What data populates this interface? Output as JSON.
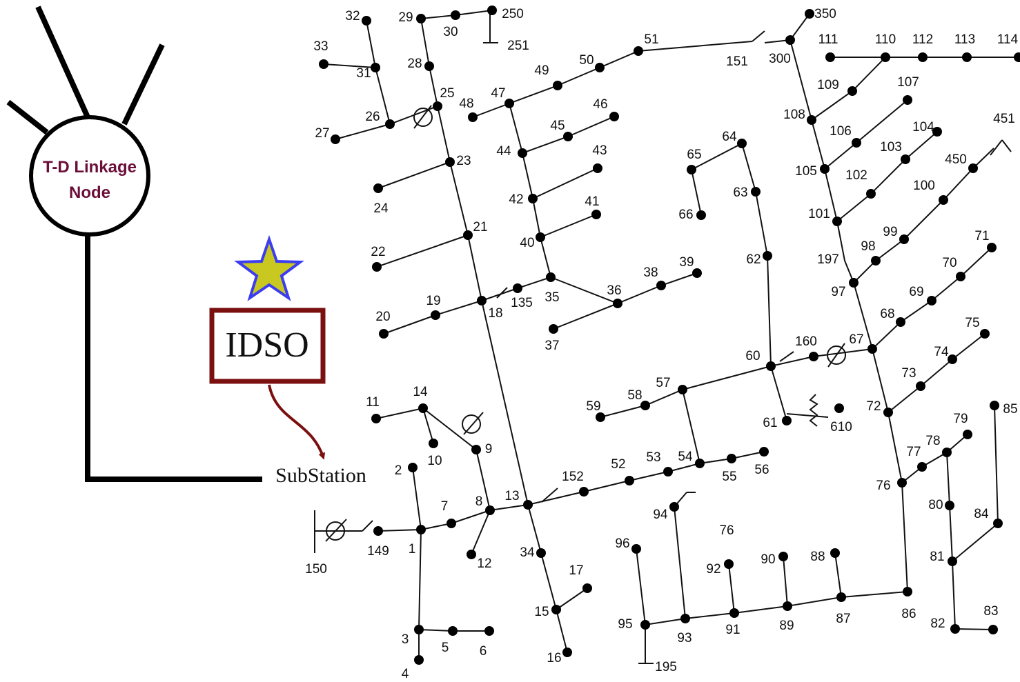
{
  "linkage_node": {
    "label_lines": [
      "T-D Linkage",
      "Node"
    ]
  },
  "idso": {
    "label": "IDSO"
  },
  "substation": {
    "label": "SubStation"
  },
  "feeder": {
    "buses": [
      "1",
      "2",
      "3",
      "4",
      "5",
      "6",
      "7",
      "8",
      "9",
      "10",
      "11",
      "12",
      "13",
      "14",
      "15",
      "16",
      "17",
      "18",
      "19",
      "20",
      "21",
      "22",
      "23",
      "24",
      "25",
      "26",
      "27",
      "28",
      "29",
      "30",
      "31",
      "32",
      "33",
      "34",
      "35",
      "36",
      "37",
      "38",
      "39",
      "40",
      "41",
      "42",
      "43",
      "44",
      "45",
      "46",
      "47",
      "48",
      "49",
      "50",
      "51",
      "52",
      "53",
      "54",
      "55",
      "56",
      "57",
      "58",
      "59",
      "60",
      "61",
      "62",
      "63",
      "64",
      "65",
      "66",
      "67",
      "68",
      "69",
      "70",
      "71",
      "72",
      "73",
      "74",
      "75",
      "76",
      "77",
      "78",
      "79",
      "80",
      "81",
      "82",
      "83",
      "84",
      "85",
      "86",
      "87",
      "88",
      "89",
      "90",
      "91",
      "92",
      "93",
      "94",
      "95",
      "96",
      "97",
      "98",
      "99",
      "100",
      "101",
      "102",
      "103",
      "104",
      "105",
      "106",
      "107",
      "108",
      "109",
      "110",
      "111",
      "112",
      "113",
      "114",
      "135",
      "149",
      "150",
      "151",
      "152",
      "160",
      "195",
      "197",
      "250",
      "251",
      "300",
      "350",
      "450",
      "451",
      "610"
    ],
    "annotation": "76"
  }
}
